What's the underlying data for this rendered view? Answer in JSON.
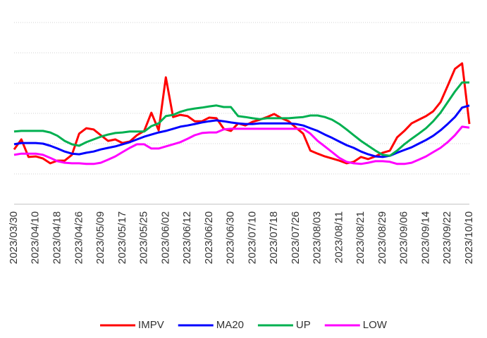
{
  "chart_data": {
    "type": "line",
    "categories": [
      "2023/03/30",
      null,
      null,
      "2023/04/10",
      null,
      null,
      "2023/04/18",
      null,
      null,
      "2023/04/26",
      null,
      null,
      "2023/05/09",
      null,
      null,
      "2023/05/17",
      null,
      null,
      "2023/05/25",
      null,
      null,
      "2023/06/02",
      null,
      null,
      "2023/06/12",
      null,
      null,
      "2023/06/20",
      null,
      null,
      "2023/06/30",
      null,
      null,
      "2023/07/10",
      null,
      null,
      "2023/07/18",
      null,
      null,
      "2023/07/26",
      null,
      null,
      "2023/08/03",
      null,
      null,
      "2023/08/11",
      null,
      null,
      "2023/08/21",
      null,
      null,
      "2023/08/29",
      null,
      null,
      "2023/09/06",
      null,
      null,
      "2023/09/14",
      null,
      null,
      "2023/09/22",
      null,
      null,
      "2023/10/10"
    ],
    "series": [
      {
        "name": "IMPV",
        "color": "#ff0000",
        "values": [
          1.81,
          2.14,
          1.56,
          1.58,
          1.51,
          1.35,
          1.44,
          1.44,
          1.63,
          2.33,
          2.51,
          2.47,
          2.28,
          2.09,
          2.14,
          2.02,
          2.07,
          2.28,
          2.42,
          3.02,
          2.44,
          4.19,
          2.88,
          2.95,
          2.91,
          2.74,
          2.74,
          2.86,
          2.84,
          2.49,
          2.42,
          2.67,
          2.6,
          2.72,
          2.79,
          2.88,
          2.98,
          2.84,
          2.74,
          2.53,
          2.33,
          1.77,
          1.67,
          1.58,
          1.51,
          1.44,
          1.35,
          1.4,
          1.56,
          1.49,
          1.58,
          1.7,
          1.77,
          2.21,
          2.42,
          2.67,
          2.79,
          2.91,
          3.07,
          3.37,
          3.91,
          4.47,
          4.65,
          2.65
        ]
      },
      {
        "name": "MA20",
        "color": "#0000ff",
        "values": [
          1.98,
          2.02,
          2.02,
          2.02,
          2.0,
          1.93,
          1.84,
          1.74,
          1.67,
          1.65,
          1.7,
          1.74,
          1.81,
          1.86,
          1.91,
          1.98,
          2.05,
          2.14,
          2.23,
          2.3,
          2.37,
          2.42,
          2.49,
          2.56,
          2.6,
          2.65,
          2.7,
          2.74,
          2.77,
          2.74,
          2.7,
          2.67,
          2.65,
          2.65,
          2.67,
          2.67,
          2.67,
          2.67,
          2.67,
          2.65,
          2.6,
          2.51,
          2.42,
          2.3,
          2.19,
          2.07,
          1.95,
          1.86,
          1.74,
          1.65,
          1.58,
          1.56,
          1.6,
          1.7,
          1.79,
          1.88,
          2.0,
          2.12,
          2.26,
          2.44,
          2.65,
          2.88,
          3.19,
          3.26
        ]
      },
      {
        "name": "UP",
        "color": "#00b050",
        "values": [
          2.4,
          2.42,
          2.42,
          2.42,
          2.42,
          2.37,
          2.26,
          2.09,
          1.98,
          1.93,
          2.05,
          2.14,
          2.23,
          2.3,
          2.35,
          2.37,
          2.4,
          2.4,
          2.4,
          2.58,
          2.67,
          2.91,
          2.95,
          3.05,
          3.12,
          3.16,
          3.19,
          3.23,
          3.26,
          3.21,
          3.21,
          2.91,
          2.88,
          2.84,
          2.81,
          2.84,
          2.84,
          2.84,
          2.84,
          2.86,
          2.88,
          2.93,
          2.93,
          2.88,
          2.79,
          2.65,
          2.47,
          2.28,
          2.09,
          1.93,
          1.77,
          1.63,
          1.6,
          1.77,
          1.98,
          2.16,
          2.33,
          2.51,
          2.74,
          3.02,
          3.37,
          3.72,
          4.02,
          4.02
        ]
      },
      {
        "name": "LOW",
        "color": "#ff00ff",
        "values": [
          1.63,
          1.67,
          1.67,
          1.67,
          1.63,
          1.53,
          1.42,
          1.37,
          1.35,
          1.35,
          1.33,
          1.33,
          1.37,
          1.47,
          1.58,
          1.72,
          1.86,
          1.98,
          1.98,
          1.84,
          1.84,
          1.91,
          1.98,
          2.05,
          2.16,
          2.28,
          2.35,
          2.37,
          2.37,
          2.47,
          2.49,
          2.49,
          2.49,
          2.49,
          2.49,
          2.49,
          2.49,
          2.49,
          2.49,
          2.49,
          2.49,
          2.33,
          2.09,
          1.91,
          1.72,
          1.53,
          1.4,
          1.35,
          1.33,
          1.37,
          1.42,
          1.42,
          1.4,
          1.33,
          1.33,
          1.37,
          1.47,
          1.58,
          1.72,
          1.86,
          2.05,
          2.28,
          2.56,
          2.53
        ]
      }
    ],
    "ylim": [
      0,
      6
    ],
    "yticks": [
      0,
      1,
      2,
      3,
      4,
      5,
      6
    ],
    "grid": true,
    "y_tick_labels": false,
    "legend": "bottom"
  }
}
